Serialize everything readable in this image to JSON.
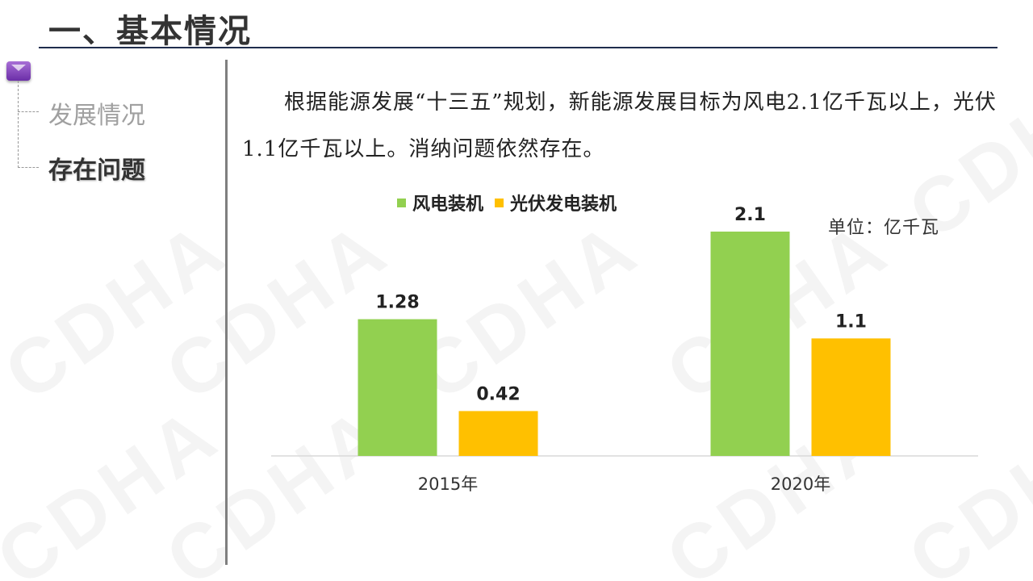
{
  "header": {
    "title": "一、基本情况"
  },
  "sidebar": {
    "items": [
      {
        "label": "发展情况",
        "active": false
      },
      {
        "label": "存在问题",
        "active": true
      }
    ]
  },
  "content": {
    "paragraph": "根据能源发展“十三五”规划，新能源发展目标为风电2.1亿千瓦以上，光伏1.1亿千瓦以上。消纳问题依然存在。"
  },
  "watermark": {
    "text": "CDHA"
  },
  "chart_data": {
    "type": "bar",
    "categories": [
      "2015年",
      "2020年"
    ],
    "series": [
      {
        "name": "风电装机",
        "values": [
          1.28,
          2.1
        ],
        "color": "#92d050",
        "labels": [
          "1.28",
          "2.1"
        ]
      },
      {
        "name": "光伏发电装机",
        "values": [
          0.42,
          1.1
        ],
        "color": "#ffc000",
        "labels": [
          "0.42",
          "1.1"
        ]
      }
    ],
    "unit_label": "单位：亿千瓦",
    "ylim": [
      0,
      2.6
    ],
    "grid": false,
    "legend_position": "top-left"
  }
}
